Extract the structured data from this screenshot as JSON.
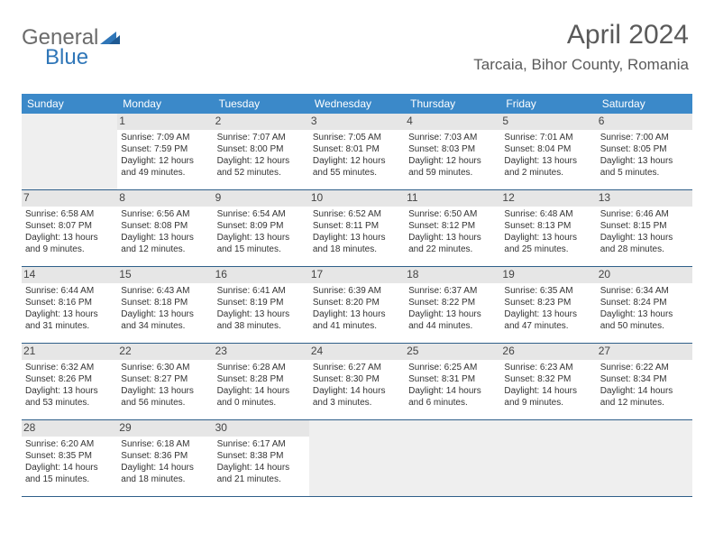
{
  "logo": {
    "text1": "General",
    "text2": "Blue"
  },
  "header": {
    "month": "April 2024",
    "location": "Tarcaia, Bihor County, Romania"
  },
  "colors": {
    "headerBar": "#3b89c9",
    "dayLabelBg": "#e6e6e6",
    "blankBg": "#efefef",
    "rowBorder": "#2f5f8a"
  },
  "daysOfWeek": [
    "Sunday",
    "Monday",
    "Tuesday",
    "Wednesday",
    "Thursday",
    "Friday",
    "Saturday"
  ],
  "weeks": [
    [
      {
        "blank": true
      },
      {
        "num": "1",
        "sunrise": "7:09 AM",
        "sunset": "7:59 PM",
        "daylight": "12 hours and 49 minutes."
      },
      {
        "num": "2",
        "sunrise": "7:07 AM",
        "sunset": "8:00 PM",
        "daylight": "12 hours and 52 minutes."
      },
      {
        "num": "3",
        "sunrise": "7:05 AM",
        "sunset": "8:01 PM",
        "daylight": "12 hours and 55 minutes."
      },
      {
        "num": "4",
        "sunrise": "7:03 AM",
        "sunset": "8:03 PM",
        "daylight": "12 hours and 59 minutes."
      },
      {
        "num": "5",
        "sunrise": "7:01 AM",
        "sunset": "8:04 PM",
        "daylight": "13 hours and 2 minutes."
      },
      {
        "num": "6",
        "sunrise": "7:00 AM",
        "sunset": "8:05 PM",
        "daylight": "13 hours and 5 minutes."
      }
    ],
    [
      {
        "num": "7",
        "sunrise": "6:58 AM",
        "sunset": "8:07 PM",
        "daylight": "13 hours and 9 minutes."
      },
      {
        "num": "8",
        "sunrise": "6:56 AM",
        "sunset": "8:08 PM",
        "daylight": "13 hours and 12 minutes."
      },
      {
        "num": "9",
        "sunrise": "6:54 AM",
        "sunset": "8:09 PM",
        "daylight": "13 hours and 15 minutes."
      },
      {
        "num": "10",
        "sunrise": "6:52 AM",
        "sunset": "8:11 PM",
        "daylight": "13 hours and 18 minutes."
      },
      {
        "num": "11",
        "sunrise": "6:50 AM",
        "sunset": "8:12 PM",
        "daylight": "13 hours and 22 minutes."
      },
      {
        "num": "12",
        "sunrise": "6:48 AM",
        "sunset": "8:13 PM",
        "daylight": "13 hours and 25 minutes."
      },
      {
        "num": "13",
        "sunrise": "6:46 AM",
        "sunset": "8:15 PM",
        "daylight": "13 hours and 28 minutes."
      }
    ],
    [
      {
        "num": "14",
        "sunrise": "6:44 AM",
        "sunset": "8:16 PM",
        "daylight": "13 hours and 31 minutes."
      },
      {
        "num": "15",
        "sunrise": "6:43 AM",
        "sunset": "8:18 PM",
        "daylight": "13 hours and 34 minutes."
      },
      {
        "num": "16",
        "sunrise": "6:41 AM",
        "sunset": "8:19 PM",
        "daylight": "13 hours and 38 minutes."
      },
      {
        "num": "17",
        "sunrise": "6:39 AM",
        "sunset": "8:20 PM",
        "daylight": "13 hours and 41 minutes."
      },
      {
        "num": "18",
        "sunrise": "6:37 AM",
        "sunset": "8:22 PM",
        "daylight": "13 hours and 44 minutes."
      },
      {
        "num": "19",
        "sunrise": "6:35 AM",
        "sunset": "8:23 PM",
        "daylight": "13 hours and 47 minutes."
      },
      {
        "num": "20",
        "sunrise": "6:34 AM",
        "sunset": "8:24 PM",
        "daylight": "13 hours and 50 minutes."
      }
    ],
    [
      {
        "num": "21",
        "sunrise": "6:32 AM",
        "sunset": "8:26 PM",
        "daylight": "13 hours and 53 minutes."
      },
      {
        "num": "22",
        "sunrise": "6:30 AM",
        "sunset": "8:27 PM",
        "daylight": "13 hours and 56 minutes."
      },
      {
        "num": "23",
        "sunrise": "6:28 AM",
        "sunset": "8:28 PM",
        "daylight": "14 hours and 0 minutes."
      },
      {
        "num": "24",
        "sunrise": "6:27 AM",
        "sunset": "8:30 PM",
        "daylight": "14 hours and 3 minutes."
      },
      {
        "num": "25",
        "sunrise": "6:25 AM",
        "sunset": "8:31 PM",
        "daylight": "14 hours and 6 minutes."
      },
      {
        "num": "26",
        "sunrise": "6:23 AM",
        "sunset": "8:32 PM",
        "daylight": "14 hours and 9 minutes."
      },
      {
        "num": "27",
        "sunrise": "6:22 AM",
        "sunset": "8:34 PM",
        "daylight": "14 hours and 12 minutes."
      }
    ],
    [
      {
        "num": "28",
        "sunrise": "6:20 AM",
        "sunset": "8:35 PM",
        "daylight": "14 hours and 15 minutes."
      },
      {
        "num": "29",
        "sunrise": "6:18 AM",
        "sunset": "8:36 PM",
        "daylight": "14 hours and 18 minutes."
      },
      {
        "num": "30",
        "sunrise": "6:17 AM",
        "sunset": "8:38 PM",
        "daylight": "14 hours and 21 minutes."
      },
      {
        "blank": true
      },
      {
        "blank": true
      },
      {
        "blank": true
      },
      {
        "blank": true
      }
    ]
  ],
  "labels": {
    "sunrisePrefix": "Sunrise: ",
    "sunsetPrefix": "Sunset: ",
    "daylightPrefix": "Daylight: "
  }
}
